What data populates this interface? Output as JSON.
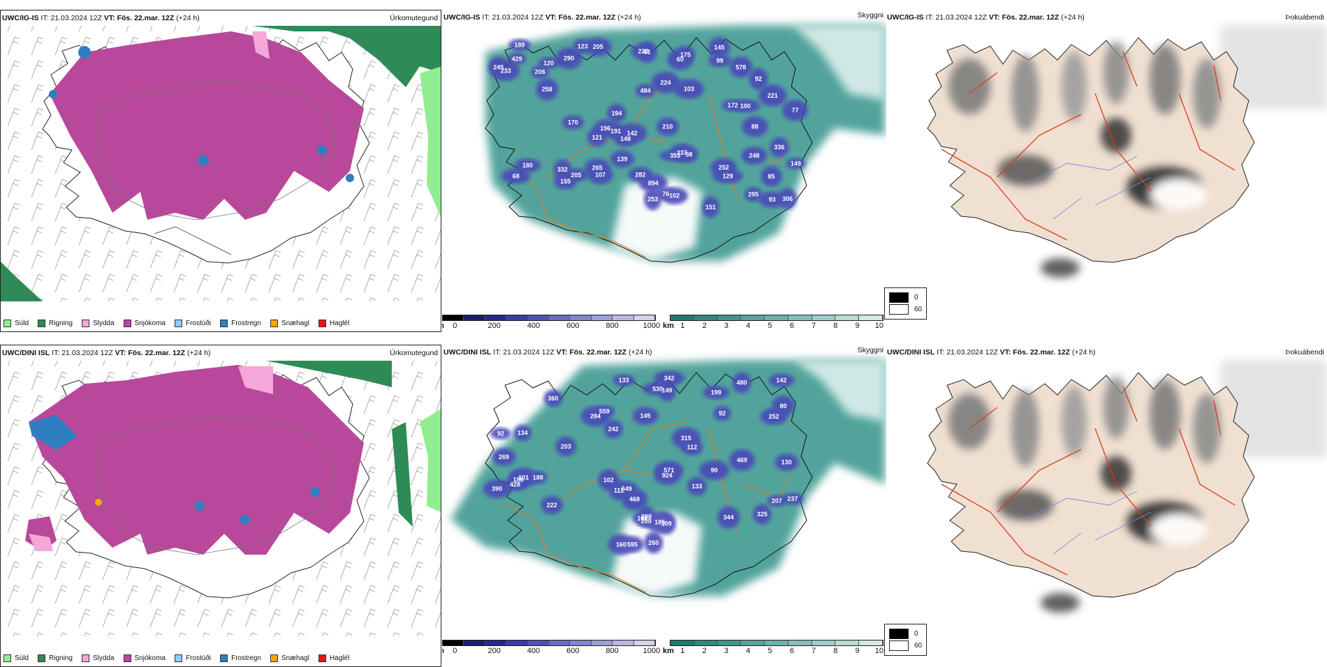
{
  "rows": [
    {
      "id": "ig",
      "panels": [
        {
          "model": "UWC/IG-IS",
          "it_label": "IT:",
          "it_value": "21.03.2024 12Z",
          "vt_label": "VT:",
          "vt_value": "Fös. 22.mar. 12Z",
          "lead": "(+24 h)",
          "title": "Úrkomutegund"
        },
        {
          "model": "UWC/IG-IS",
          "it_label": "IT:",
          "it_value": "21.03.2024 12Z",
          "vt_label": "VT:",
          "vt_value": "Fös. 22.mar. 12Z",
          "lead": "(+24 h)",
          "title": "Skyggni"
        },
        {
          "model": "UWC/IG-IS",
          "it_label": "IT:",
          "it_value": "21.03.2024 12Z",
          "vt_label": "VT:",
          "vt_value": "Fös. 22.mar. 12Z",
          "lead": "(+24 h)",
          "title": "Þokuábendi"
        }
      ],
      "visibility_labels": [
        "120",
        "99",
        "76",
        "142",
        "205",
        "100",
        "252",
        "61",
        "894",
        "253",
        "245",
        "102",
        "60",
        "191",
        "295",
        "121",
        "139",
        "155",
        "149",
        "151",
        "92",
        "248",
        "233",
        "175",
        "336",
        "332",
        "129",
        "206",
        "221",
        "258",
        "205",
        "224",
        "196",
        "194",
        "210",
        "180",
        "103",
        "306",
        "290",
        "170",
        "172",
        "88",
        "98",
        "429",
        "484",
        "578",
        "145",
        "189",
        "148",
        "77",
        "85",
        "282",
        "107",
        "220",
        "68",
        "93",
        "123",
        "265",
        "237",
        "353"
      ]
    },
    {
      "id": "dini",
      "panels": [
        {
          "model": "UWC/DINI ISL",
          "it_label": "IT:",
          "it_value": "21.03.2024 12Z",
          "vt_label": "VT:",
          "vt_value": "Fös. 22.mar. 12Z",
          "lead": "(+24 h)",
          "title": "Úrkomutegund"
        },
        {
          "model": "UWC/DINI ISL",
          "it_label": "IT:",
          "it_value": "21.03.2024 12Z",
          "vt_label": "VT:",
          "vt_value": "Fös. 22.mar. 12Z",
          "lead": "(+24 h)",
          "title": "Skyggni"
        },
        {
          "model": "UWC/DINI ISL",
          "it_label": "IT:",
          "it_value": "21.03.2024 12Z",
          "vt_label": "VT:",
          "vt_value": "Fös. 22.mar. 12Z",
          "lead": "(+24 h)",
          "title": "Þokuábendi"
        }
      ],
      "visibility_labels": [
        "92",
        "428",
        "559",
        "284",
        "142",
        "530",
        "924",
        "109",
        "571",
        "149",
        "102",
        "252",
        "469",
        "360",
        "92",
        "133",
        "130",
        "595",
        "207",
        "208",
        "260",
        "145",
        "101",
        "188",
        "111",
        "325",
        "342",
        "188",
        "185",
        "344",
        "390",
        "315",
        "269",
        "242",
        "222",
        "199",
        "90",
        "480",
        "468",
        "649",
        "133",
        "160",
        "134",
        "209",
        "100",
        "80",
        "203",
        "237",
        "112"
      ]
    }
  ],
  "precip_legend": [
    {
      "label": "Súld",
      "color": "#90ee90"
    },
    {
      "label": "Rigning",
      "color": "#2e8b57"
    },
    {
      "label": "Slydda",
      "color": "#f4a7d8"
    },
    {
      "label": "Snjókoma",
      "color": "#b8489a"
    },
    {
      "label": "Frostúði",
      "color": "#87cefa"
    },
    {
      "label": "Frostregn",
      "color": "#2f7fc0"
    },
    {
      "label": "Snæhagl",
      "color": "#ffa500"
    },
    {
      "label": "Haglél",
      "color": "#ee1111"
    }
  ],
  "visibility_bars": {
    "m_unit": "m",
    "m_ticks": [
      "0",
      "200",
      "400",
      "600",
      "800",
      "1000"
    ],
    "m_colors": [
      "#000000",
      "#1c1c6e",
      "#262690",
      "#3a3aa8",
      "#5050b8",
      "#6a6ac4",
      "#8484ce",
      "#9e9ed8",
      "#b8b8e2",
      "#d2d2ec"
    ],
    "km_unit": "km",
    "km_ticks": [
      "1",
      "2",
      "3",
      "4",
      "5",
      "6",
      "7",
      "8",
      "9",
      "10"
    ],
    "km_colors": [
      "#1f7a72",
      "#2f8880",
      "#42958e",
      "#58a39c",
      "#6eb1aa",
      "#86bfb9",
      "#9ecdc8",
      "#b8dbd7",
      "#d2e9e6"
    ]
  },
  "fog_legend": [
    {
      "label": "0",
      "color": "#000000"
    },
    {
      "label": "60",
      "color": "#ffffff"
    }
  ],
  "colors": {
    "snow": "#b8489a",
    "rain": "#2e8b57",
    "drizzle": "#90ee90",
    "sleet": "#f4a7d8",
    "freezing_rain": "#2f7fc0",
    "visibility_teal": "#3f9a92",
    "roads": "#e07a22",
    "fog_land": "#f0e0d2",
    "fog_roads": "#dd3a1a",
    "fog_rivers": "#7a8ae0"
  }
}
